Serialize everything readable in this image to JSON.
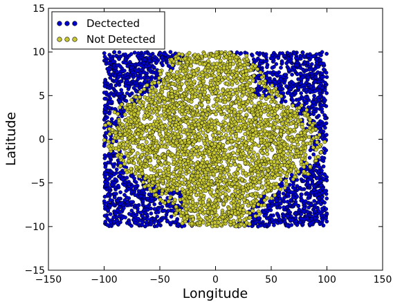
{
  "chart_data": {
    "type": "scatter",
    "title": "",
    "xlabel": "Longitude",
    "ylabel": "Latitude",
    "xlim": [
      -150,
      150
    ],
    "ylim": [
      -15,
      15
    ],
    "xticks": [
      -150,
      -100,
      -50,
      0,
      50,
      100,
      150
    ],
    "yticks": [
      -15,
      -10,
      -5,
      0,
      5,
      10,
      15
    ],
    "grid": false,
    "legend_position": "top-left",
    "region": {
      "lon": [
        -100,
        100
      ],
      "lat": [
        -10,
        10
      ]
    },
    "series": [
      {
        "name": "Dectected",
        "color": "#0000cc",
        "edge": "#000000"
      },
      {
        "name": "Not Detected",
        "color": "#c8c832",
        "edge": "#000000"
      }
    ],
    "description_of_distribution": "Dense uniform field of points between longitude -100..100 and latitude -10..10; points near the outer longitudes and high |latitude| corners are Dectected (blue); central band is Not Detected (yellow)."
  }
}
